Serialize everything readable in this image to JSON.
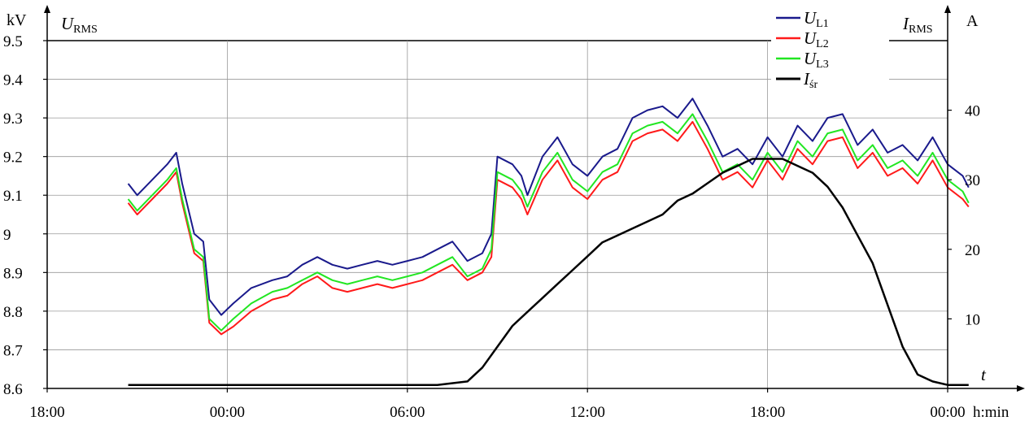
{
  "chart_data": {
    "type": "line",
    "title": "",
    "left_axis": {
      "unit": "kV",
      "quantity": "U",
      "quantity_sub": "RMS",
      "ylim": [
        8.6,
        9.5
      ],
      "ticks": [
        "8.6",
        "8.7",
        "8.8",
        "8.9",
        "9",
        "9.1",
        "9.2",
        "9.3",
        "9.4",
        "9.5"
      ]
    },
    "right_axis": {
      "unit": "A",
      "quantity": "I",
      "quantity_sub": "RMS",
      "ylim": [
        0,
        50
      ],
      "ticks": [
        "10",
        "20",
        "30",
        "40"
      ],
      "tick_values": [
        10,
        20,
        30,
        40
      ],
      "t_label": "t"
    },
    "x_axis": {
      "unit_label": "h:min",
      "range_hours": [
        0,
        30
      ],
      "ticks": [
        "18:00",
        "00:00",
        "06:00",
        "12:00",
        "18:00",
        "00:00"
      ],
      "tick_hours": [
        0,
        6,
        12,
        18,
        24,
        30
      ]
    },
    "grid": true,
    "legend_position": "top-right",
    "series": [
      {
        "name": "U",
        "name_sub": "L1",
        "axis": "left",
        "color": "#1a1a8c",
        "x": [
          2.7,
          3.0,
          3.5,
          4.0,
          4.3,
          4.5,
          4.9,
          5.2,
          5.4,
          5.8,
          6.2,
          6.8,
          7.5,
          8.0,
          8.5,
          9.0,
          9.5,
          10.0,
          10.5,
          11.0,
          11.5,
          12.0,
          12.5,
          13.0,
          13.5,
          14.0,
          14.5,
          14.8,
          15.0,
          15.5,
          15.8,
          16.0,
          16.5,
          17.0,
          17.5,
          18.0,
          18.5,
          19.0,
          19.5,
          20.0,
          20.5,
          21.0,
          21.5,
          22.0,
          22.5,
          23.0,
          23.5,
          24.0,
          24.5,
          25.0,
          25.5,
          26.0,
          26.5,
          27.0,
          27.5,
          28.0,
          28.5,
          29.0,
          29.5,
          30.0,
          30.5,
          30.7
        ],
        "values": [
          9.13,
          9.1,
          9.14,
          9.18,
          9.21,
          9.13,
          9.0,
          8.98,
          8.83,
          8.79,
          8.82,
          8.86,
          8.88,
          8.89,
          8.92,
          8.94,
          8.92,
          8.91,
          8.92,
          8.93,
          8.92,
          8.93,
          8.94,
          8.96,
          8.98,
          8.93,
          8.95,
          9.0,
          9.2,
          9.18,
          9.15,
          9.1,
          9.2,
          9.25,
          9.18,
          9.15,
          9.2,
          9.22,
          9.3,
          9.32,
          9.33,
          9.3,
          9.35,
          9.28,
          9.2,
          9.22,
          9.18,
          9.25,
          9.2,
          9.28,
          9.24,
          9.3,
          9.31,
          9.23,
          9.27,
          9.21,
          9.23,
          9.19,
          9.25,
          9.18,
          9.15,
          9.12
        ]
      },
      {
        "name": "U",
        "name_sub": "L2",
        "axis": "left",
        "color": "#ff1a1a",
        "x": [
          2.7,
          3.0,
          3.5,
          4.0,
          4.3,
          4.5,
          4.9,
          5.2,
          5.4,
          5.8,
          6.2,
          6.8,
          7.5,
          8.0,
          8.5,
          9.0,
          9.5,
          10.0,
          10.5,
          11.0,
          11.5,
          12.0,
          12.5,
          13.0,
          13.5,
          14.0,
          14.5,
          14.8,
          15.0,
          15.5,
          15.8,
          16.0,
          16.5,
          17.0,
          17.5,
          18.0,
          18.5,
          19.0,
          19.5,
          20.0,
          20.5,
          21.0,
          21.5,
          22.0,
          22.5,
          23.0,
          23.5,
          24.0,
          24.5,
          25.0,
          25.5,
          26.0,
          26.5,
          27.0,
          27.5,
          28.0,
          28.5,
          29.0,
          29.5,
          30.0,
          30.5,
          30.7
        ],
        "values": [
          9.08,
          9.05,
          9.09,
          9.13,
          9.16,
          9.08,
          8.95,
          8.93,
          8.77,
          8.74,
          8.76,
          8.8,
          8.83,
          8.84,
          8.87,
          8.89,
          8.86,
          8.85,
          8.86,
          8.87,
          8.86,
          8.87,
          8.88,
          8.9,
          8.92,
          8.88,
          8.9,
          8.94,
          9.14,
          9.12,
          9.09,
          9.05,
          9.14,
          9.19,
          9.12,
          9.09,
          9.14,
          9.16,
          9.24,
          9.26,
          9.27,
          9.24,
          9.29,
          9.22,
          9.14,
          9.16,
          9.12,
          9.19,
          9.14,
          9.22,
          9.18,
          9.24,
          9.25,
          9.17,
          9.21,
          9.15,
          9.17,
          9.13,
          9.19,
          9.12,
          9.09,
          9.07
        ]
      },
      {
        "name": "U",
        "name_sub": "L3",
        "axis": "left",
        "color": "#22e622",
        "x": [
          2.7,
          3.0,
          3.5,
          4.0,
          4.3,
          4.5,
          4.9,
          5.2,
          5.4,
          5.8,
          6.2,
          6.8,
          7.5,
          8.0,
          8.5,
          9.0,
          9.5,
          10.0,
          10.5,
          11.0,
          11.5,
          12.0,
          12.5,
          13.0,
          13.5,
          14.0,
          14.5,
          14.8,
          15.0,
          15.5,
          15.8,
          16.0,
          16.5,
          17.0,
          17.5,
          18.0,
          18.5,
          19.0,
          19.5,
          20.0,
          20.5,
          21.0,
          21.5,
          22.0,
          22.5,
          23.0,
          23.5,
          24.0,
          24.5,
          25.0,
          25.5,
          26.0,
          26.5,
          27.0,
          27.5,
          28.0,
          28.5,
          29.0,
          29.5,
          30.0,
          30.5,
          30.7
        ],
        "values": [
          9.09,
          9.06,
          9.1,
          9.14,
          9.17,
          9.09,
          8.96,
          8.94,
          8.78,
          8.75,
          8.78,
          8.82,
          8.85,
          8.86,
          8.88,
          8.9,
          8.88,
          8.87,
          8.88,
          8.89,
          8.88,
          8.89,
          8.9,
          8.92,
          8.94,
          8.89,
          8.91,
          8.96,
          9.16,
          9.14,
          9.11,
          9.07,
          9.16,
          9.21,
          9.14,
          9.11,
          9.16,
          9.18,
          9.26,
          9.28,
          9.29,
          9.26,
          9.31,
          9.24,
          9.16,
          9.18,
          9.14,
          9.21,
          9.16,
          9.24,
          9.2,
          9.26,
          9.27,
          9.19,
          9.23,
          9.17,
          9.19,
          9.15,
          9.21,
          9.14,
          9.11,
          9.08
        ]
      },
      {
        "name": "I",
        "name_sub": "śr",
        "axis": "right",
        "color": "#000000",
        "x": [
          2.7,
          5.0,
          8.0,
          11.0,
          13.0,
          14.0,
          14.5,
          15.0,
          15.5,
          16.0,
          16.5,
          17.0,
          17.5,
          18.0,
          18.5,
          19.0,
          19.5,
          20.0,
          20.5,
          21.0,
          21.5,
          22.0,
          22.5,
          23.0,
          23.5,
          24.0,
          24.5,
          25.0,
          25.5,
          26.0,
          26.5,
          27.0,
          27.5,
          28.0,
          28.5,
          29.0,
          29.5,
          30.0,
          30.7
        ],
        "values": [
          0.5,
          0.5,
          0.5,
          0.5,
          0.5,
          1,
          3,
          6,
          9,
          11,
          13,
          15,
          17,
          19,
          21,
          22,
          23,
          24,
          25,
          27,
          28,
          29.5,
          31,
          32,
          33,
          33,
          33,
          32,
          31,
          29,
          26,
          22,
          18,
          12,
          6,
          2,
          1,
          0.5,
          0.5
        ]
      }
    ]
  }
}
